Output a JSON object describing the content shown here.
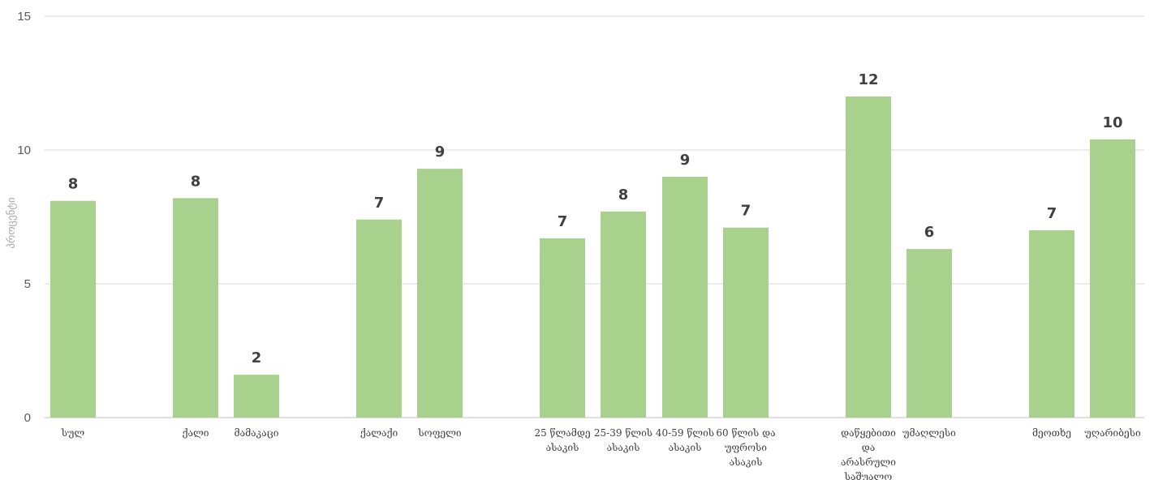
{
  "chart_data": {
    "type": "bar",
    "ylabel": "პროცენტი",
    "ylim": [
      0,
      15
    ],
    "yticks": [
      0,
      5,
      10,
      15
    ],
    "grid": true,
    "bar_color": "#a9d18e",
    "categories": [
      [
        "სულ"
      ],
      [
        "ქალი"
      ],
      [
        "მამაკაცი"
      ],
      [
        "ქალაქი"
      ],
      [
        "სოფელი"
      ],
      [
        "25 წლამდე",
        "ასაკის"
      ],
      [
        "25-39 წლის",
        "ასაკის"
      ],
      [
        "40-59 წლის",
        "ასაკის"
      ],
      [
        "60 წლის და",
        "უფროსი",
        "ასაკის"
      ],
      [
        "დაწყებითი",
        "და",
        "არასრული",
        "საშუალო"
      ],
      [
        "უმაღლესი"
      ],
      [
        "მეოთხე"
      ],
      [
        "უღარიბესი"
      ]
    ],
    "values": [
      8.1,
      8.2,
      1.6,
      7.4,
      9.3,
      6.7,
      7.7,
      9.0,
      7.1,
      12.0,
      6.3,
      7.0,
      10.4
    ],
    "data_labels": [
      "8",
      "8",
      "2",
      "7",
      "9",
      "7",
      "8",
      "9",
      "7",
      "12",
      "6",
      "7",
      "10"
    ]
  }
}
